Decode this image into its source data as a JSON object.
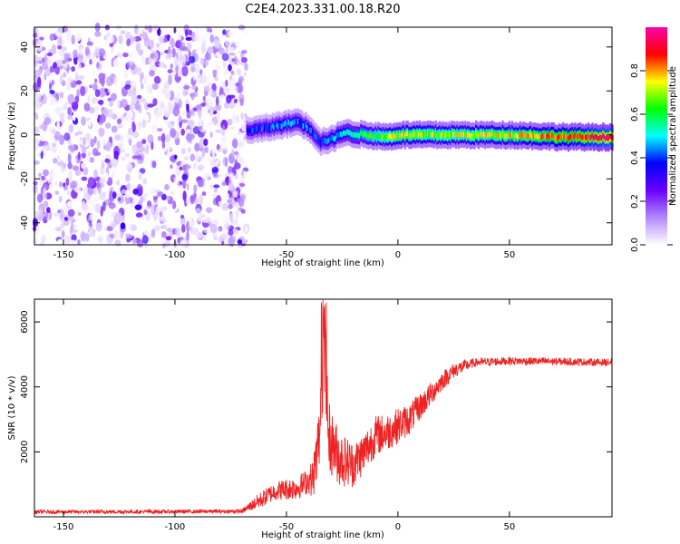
{
  "title": "C2E4.2023.331.00.18.R20",
  "chart_data": [
    {
      "type": "heatmap",
      "xlabel": "Height of straight line (km)",
      "ylabel": "Frequency (Hz)",
      "xlim": [
        -163,
        96
      ],
      "ylim": [
        -50,
        49
      ],
      "xticks": [
        -150,
        -100,
        -50,
        0,
        50
      ],
      "yticks": [
        40,
        20,
        0,
        -20,
        -40
      ],
      "colorbar": {
        "label": "Normalized spectral amplitude",
        "range": [
          0,
          1
        ],
        "ticks": [
          0.0,
          0.2,
          0.4,
          0.6,
          0.8
        ],
        "colormap": [
          "#ffffff",
          "#b388ff",
          "#6a00ff",
          "#0000ff",
          "#00ffff",
          "#00ff00",
          "#ffff00",
          "#ff0000",
          "#ff00aa"
        ]
      },
      "features": {
        "noise_region_x": [
          -163,
          -68
        ],
        "noise_amplitude": 0.15,
        "signal_track": [
          {
            "x": -68,
            "f": 2
          },
          {
            "x": -60,
            "f": 3
          },
          {
            "x": -50,
            "f": 5
          },
          {
            "x": -45,
            "f": 6
          },
          {
            "x": -40,
            "f": 3
          },
          {
            "x": -35,
            "f": -3
          },
          {
            "x": -30,
            "f": -2
          },
          {
            "x": -25,
            "f": 1
          },
          {
            "x": -15,
            "f": 0
          },
          {
            "x": -5,
            "f": -1
          },
          {
            "x": 0,
            "f": 0
          },
          {
            "x": 25,
            "f": 0
          },
          {
            "x": 50,
            "f": 0
          },
          {
            "x": 75,
            "f": -1
          },
          {
            "x": 96,
            "f": -1
          }
        ],
        "signal_strength": [
          {
            "x": -68,
            "a": 0.35
          },
          {
            "x": -50,
            "a": 0.45
          },
          {
            "x": -35,
            "a": 0.4
          },
          {
            "x": -20,
            "a": 0.55
          },
          {
            "x": 0,
            "a": 0.75
          },
          {
            "x": 20,
            "a": 0.7
          },
          {
            "x": 50,
            "a": 0.75
          },
          {
            "x": 80,
            "a": 0.85
          },
          {
            "x": 96,
            "a": 0.95
          }
        ]
      }
    },
    {
      "type": "line",
      "xlabel": "Height of straight line (km)",
      "ylabel": "SNR (10 * v/v)",
      "xlim": [
        -163,
        96
      ],
      "ylim": [
        0,
        6700
      ],
      "xticks": [
        -150,
        -100,
        -50,
        0,
        50
      ],
      "yticks": [
        6000,
        4000,
        2000
      ],
      "series": [
        {
          "color": "#ee2222",
          "envelope": [
            {
              "x": -163,
              "y": 150
            },
            {
              "x": -100,
              "y": 160
            },
            {
              "x": -70,
              "y": 170
            },
            {
              "x": -62,
              "y": 500
            },
            {
              "x": -55,
              "y": 800
            },
            {
              "x": -45,
              "y": 900
            },
            {
              "x": -38,
              "y": 1200
            },
            {
              "x": -35,
              "y": 2600
            },
            {
              "x": -33,
              "y": 5000
            },
            {
              "x": -31,
              "y": 2400
            },
            {
              "x": -26,
              "y": 1800
            },
            {
              "x": -20,
              "y": 1600
            },
            {
              "x": -15,
              "y": 2000
            },
            {
              "x": -10,
              "y": 2500
            },
            {
              "x": -5,
              "y": 2600
            },
            {
              "x": 0,
              "y": 2800
            },
            {
              "x": 5,
              "y": 3000
            },
            {
              "x": 10,
              "y": 3400
            },
            {
              "x": 15,
              "y": 3800
            },
            {
              "x": 20,
              "y": 4200
            },
            {
              "x": 25,
              "y": 4500
            },
            {
              "x": 30,
              "y": 4650
            },
            {
              "x": 35,
              "y": 4750
            },
            {
              "x": 50,
              "y": 4800
            },
            {
              "x": 75,
              "y": 4780
            },
            {
              "x": 96,
              "y": 4750
            }
          ],
          "noise": [
            {
              "x": -163,
              "n": 60
            },
            {
              "x": -70,
              "n": 60
            },
            {
              "x": -62,
              "n": 250
            },
            {
              "x": -40,
              "n": 400
            },
            {
              "x": -36,
              "n": 900
            },
            {
              "x": -33,
              "n": 1700
            },
            {
              "x": -30,
              "n": 1000
            },
            {
              "x": -20,
              "n": 700
            },
            {
              "x": 0,
              "n": 550
            },
            {
              "x": 20,
              "n": 300
            },
            {
              "x": 35,
              "n": 130
            },
            {
              "x": 96,
              "n": 110
            }
          ]
        }
      ]
    }
  ]
}
